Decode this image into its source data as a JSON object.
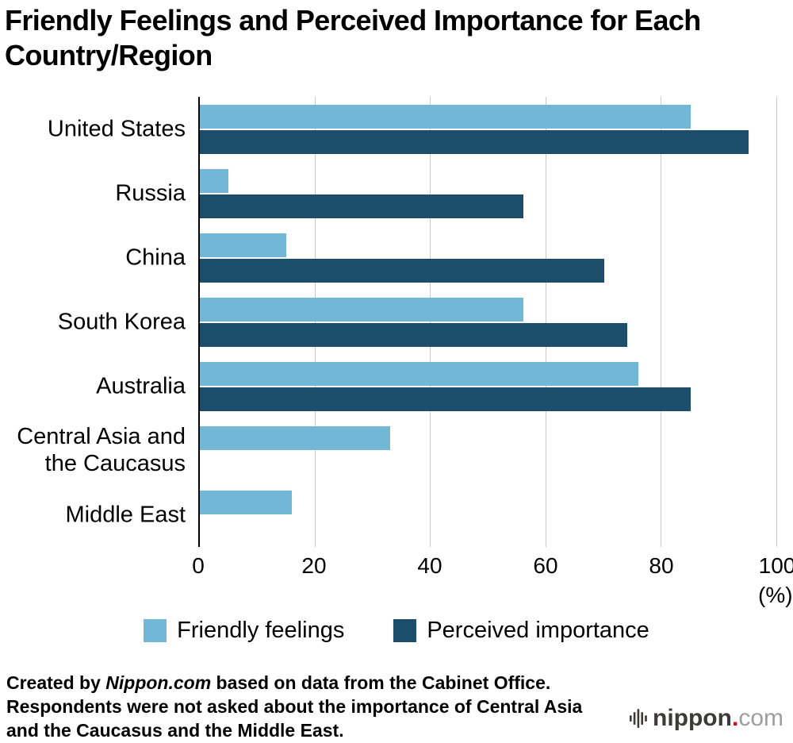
{
  "title": "Friendly Feelings and Perceived Importance for Each Country/Region",
  "chart_data": {
    "type": "bar",
    "orientation": "horizontal",
    "categories": [
      "United States",
      "Russia",
      "China",
      "South Korea",
      "Australia",
      "Central Asia and\nthe Caucasus",
      "Middle East"
    ],
    "series": [
      {
        "name": "Friendly feelings",
        "color": "#72b7d5",
        "values": [
          85,
          5,
          15,
          56,
          76,
          33,
          16
        ]
      },
      {
        "name": "Perceived importance",
        "color": "#1c4e6b",
        "values": [
          95,
          56,
          70,
          74,
          85,
          null,
          null
        ]
      }
    ],
    "xlim": [
      0,
      100
    ],
    "xticks": [
      0,
      20,
      40,
      60,
      80,
      100
    ],
    "x_unit": "(%)",
    "grid": "vertical-on",
    "legend_position": "bottom",
    "axis_color": "#000000",
    "grid_color": "#c9c9c9"
  },
  "footer": {
    "line1_prefix": "Created by ",
    "line1_source": "Nippon.com",
    "line1_suffix": " based on data from the Cabinet Office.",
    "line2": "Respondents were not asked about the importance of Central Asia and the Caucasus and the Middle East."
  },
  "logo": {
    "icon": "soundwave-icon",
    "name": "nippon",
    "dot": ".",
    "tld": "com",
    "dot_color": "#e60012"
  }
}
